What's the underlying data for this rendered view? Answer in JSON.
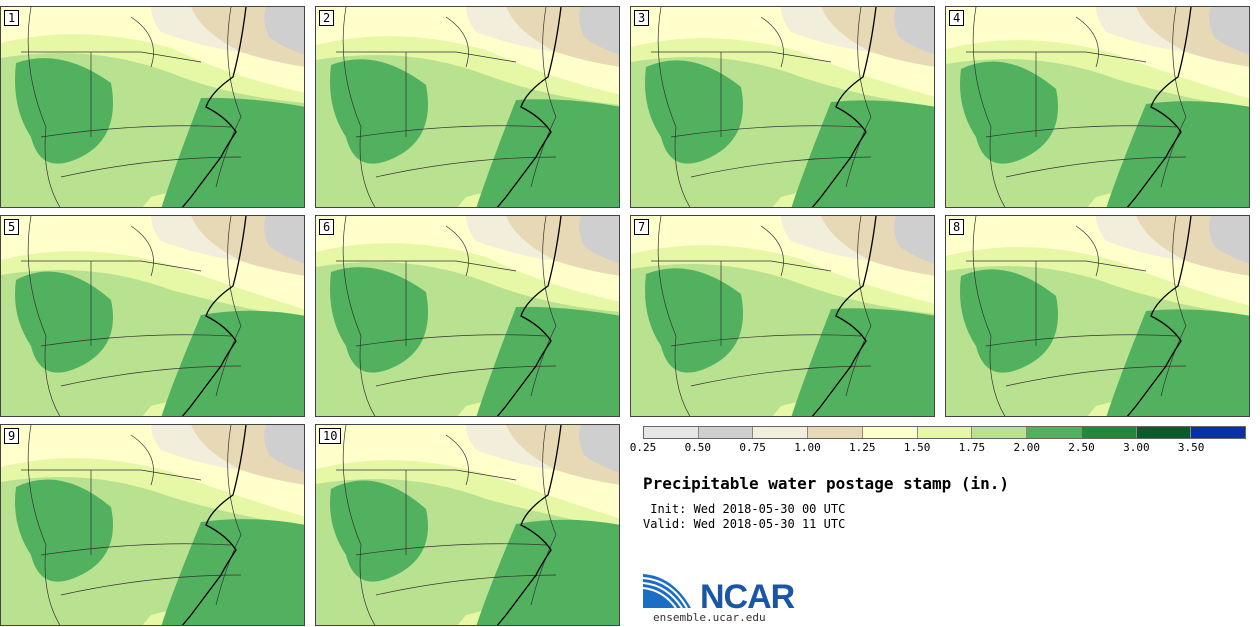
{
  "panels": [
    {
      "label": "1"
    },
    {
      "label": "2"
    },
    {
      "label": "3"
    },
    {
      "label": "4"
    },
    {
      "label": "5"
    },
    {
      "label": "6"
    },
    {
      "label": "7"
    },
    {
      "label": "8"
    },
    {
      "label": "9"
    },
    {
      "label": "10"
    }
  ],
  "legend": {
    "colors": [
      "#e6e6e6",
      "#cfcfcf",
      "#f1eedc",
      "#e7d9b5",
      "#ffffcc",
      "#e6f7a6",
      "#b8e28f",
      "#51b15f",
      "#1f8a3c",
      "#0b5a2a",
      "#0a2fa8"
    ],
    "ticks": [
      "0.25",
      "0.50",
      "0.75",
      "1.00",
      "1.25",
      "1.50",
      "1.75",
      "2.00",
      "2.50",
      "3.00",
      "3.50"
    ]
  },
  "title": "Precipitable water postage stamp (in.)",
  "init_line": " Init: Wed 2018-05-30 00 UTC",
  "valid_line": "Valid: Wed 2018-05-30 11 UTC",
  "logo_text": "NCAR",
  "website": "ensemble.ucar.edu"
}
